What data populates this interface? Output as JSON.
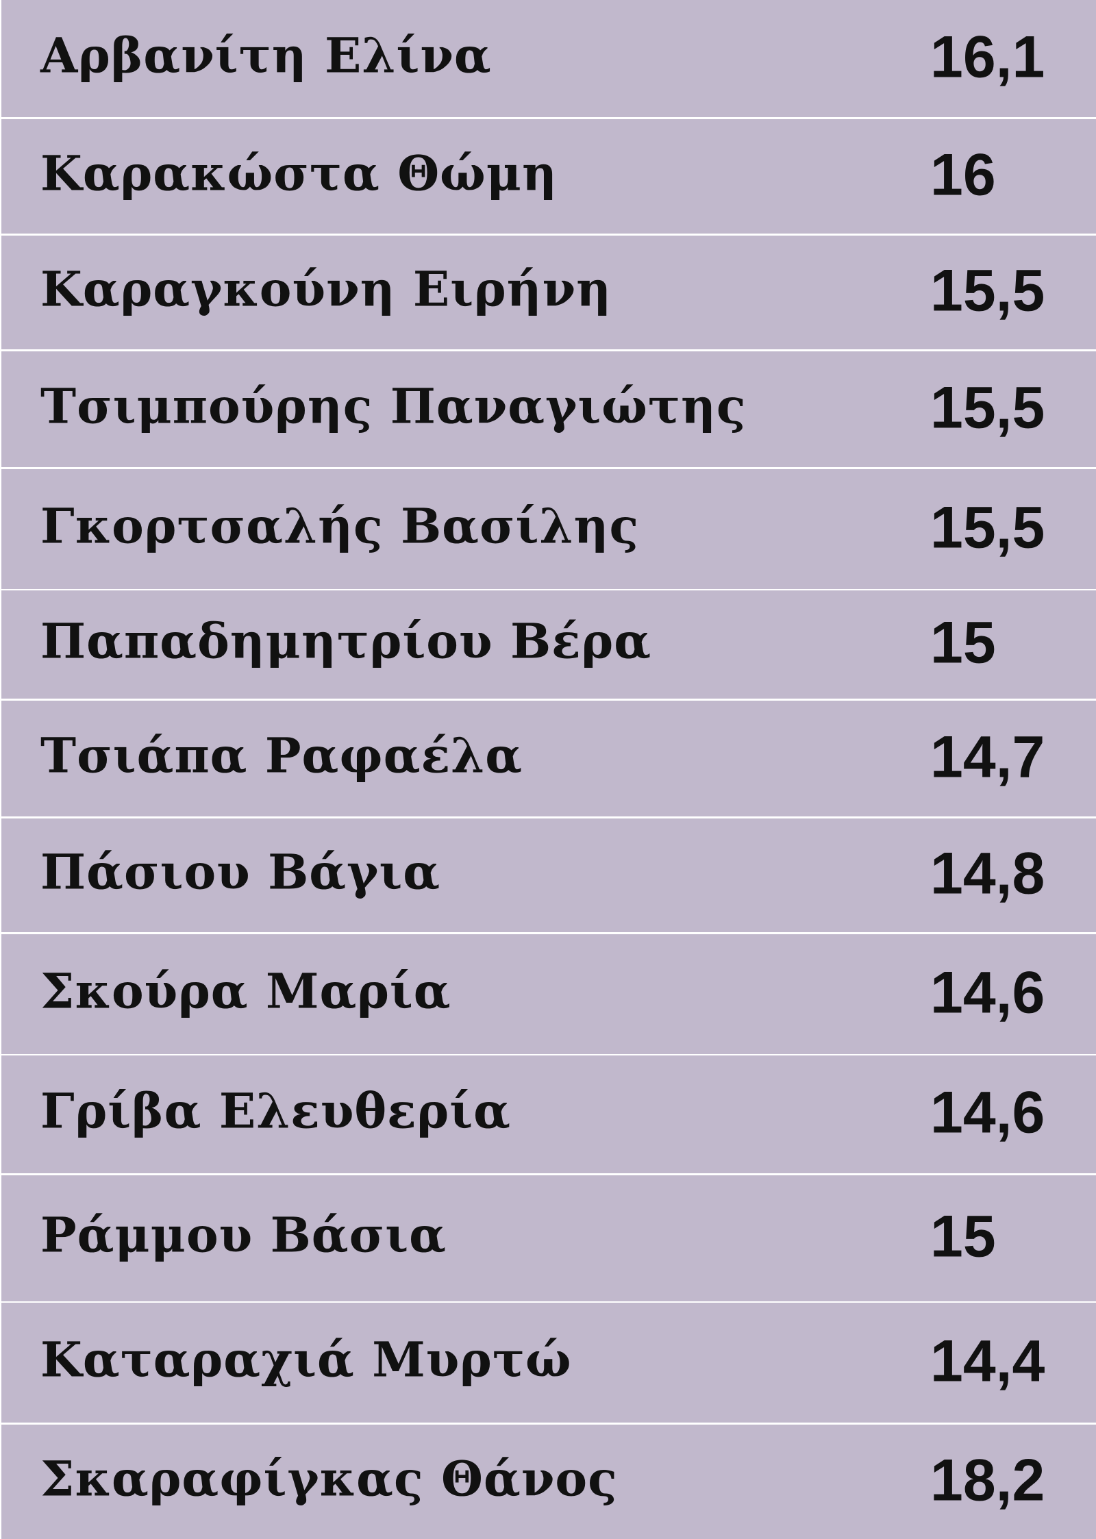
{
  "background_color": "#c1b8cc",
  "rows": [
    {
      "name": "Αρβανίτη Ελίνα",
      "score": "16,1"
    },
    {
      "name": "Καρακώστα Θώμη",
      "score": "16"
    },
    {
      "name": "Καραγκούνη Ειρήνη",
      "score": "15,5"
    },
    {
      "name": "Τσιμπούρης Παναγιώτης",
      "score": "15,5"
    },
    {
      "name": "Γκορτσαλής Βασίλης",
      "score": "15,5"
    },
    {
      "name": "Παπαδημητρίου Βέρα",
      "score": "15"
    },
    {
      "name": "Τσιάπα Ραφαέλα",
      "score": "14,7"
    },
    {
      "name": "Πάσιου Βάγια",
      "score": "14,8"
    },
    {
      "name": "Σκούρα Μαρία",
      "score": "14,6"
    },
    {
      "name": "Γρίβα Ελευθερία",
      "score": "14,6"
    },
    {
      "name": "Ράμμου Βάσια",
      "score": "15"
    },
    {
      "name": "Καταραχιά Μυρτώ",
      "score": "14,4"
    },
    {
      "name": "Σκαραφίγκας Θάνος",
      "score": "18,2"
    }
  ]
}
